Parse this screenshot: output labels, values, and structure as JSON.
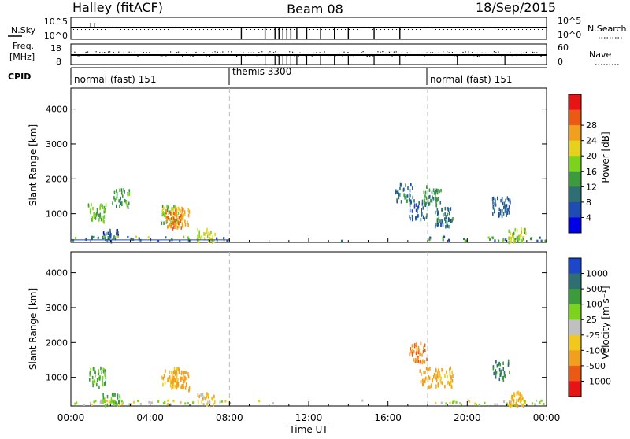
{
  "header": {
    "station": "Halley (fitACF)",
    "beam": "Beam 08",
    "date": "18/Sep/2015"
  },
  "noise_panel": {
    "left_label": "N.Sky",
    "left_ticks": [
      "10^5",
      "10^0"
    ],
    "right_label": "N.Search",
    "right_ticks": [
      "10^5",
      "10^0"
    ]
  },
  "freq_panel": {
    "left_label_1": "Freq.",
    "left_label_2": "[MHz]",
    "left_ticks": [
      "18",
      "8"
    ],
    "right_label": "Nave",
    "right_ticks": [
      "60",
      "0"
    ]
  },
  "cpid_panel": {
    "label": "CPID",
    "segments": [
      {
        "start_hour": 0,
        "end_hour": 8,
        "label": "normal (fast) 151"
      },
      {
        "start_hour": 8,
        "end_hour": 18,
        "label": "themis 3300"
      },
      {
        "start_hour": 18,
        "end_hour": 24,
        "label": "normal (fast) 151"
      }
    ]
  },
  "chart_data": [
    {
      "type": "heatmap",
      "name": "power",
      "ylabel": "Slant Range [km]",
      "y_ticks": [
        "1000",
        "2000",
        "3000",
        "4000"
      ],
      "ylim": [
        180,
        4600
      ],
      "xlim": [
        0,
        24
      ],
      "colorbar_label": "Power [dB]",
      "colorbar_ticks": [
        "4",
        "8",
        "12",
        "16",
        "20",
        "24",
        "28"
      ],
      "colorbar_colors": [
        "#0000e6",
        "#1e4bb4",
        "#2f6e73",
        "#3c9b3c",
        "#7dd21e",
        "#e6d21e",
        "#f0a01e",
        "#eb5a14",
        "#e61414"
      ],
      "clusters": [
        {
          "hour": 1.3,
          "range_km": 1000,
          "value": 14
        },
        {
          "hour": 2.5,
          "range_km": 1450,
          "value": 12
        },
        {
          "hour": 5.0,
          "range_km": 1000,
          "value": 16
        },
        {
          "hour": 5.5,
          "range_km": 900,
          "value": 22
        },
        {
          "hour": 5.2,
          "range_km": 850,
          "value": 26
        },
        {
          "hour": 16.8,
          "range_km": 1600,
          "value": 8
        },
        {
          "hour": 17.5,
          "range_km": 1100,
          "value": 6
        },
        {
          "hour": 18.2,
          "range_km": 1500,
          "value": 10
        },
        {
          "hour": 18.8,
          "range_km": 900,
          "value": 8
        },
        {
          "hour": 21.7,
          "range_km": 1200,
          "value": 6
        },
        {
          "hour": 22.5,
          "range_km": 300,
          "value": 16
        },
        {
          "hour": 2.0,
          "range_km": 250,
          "value": 4
        },
        {
          "hour": 6.8,
          "range_km": 280,
          "value": 18
        }
      ]
    },
    {
      "type": "heatmap",
      "name": "velocity",
      "ylabel": "Slant Range [km]",
      "y_ticks": [
        "1000",
        "2000",
        "3000",
        "4000"
      ],
      "ylim": [
        180,
        4600
      ],
      "xlim": [
        0,
        24
      ],
      "colorbar_label": "Velocity [m s⁻¹]",
      "colorbar_ticks": [
        "1000",
        "500",
        "100",
        "25",
        "-25",
        "-100",
        "-500",
        "-1000"
      ],
      "colorbar_colors": [
        "#1e46c8",
        "#2f6e73",
        "#3c9b3c",
        "#7dd21e",
        "#c0c0c0",
        "#f0c81e",
        "#f0a01e",
        "#eb5a14",
        "#e61414"
      ],
      "clusters": [
        {
          "hour": 1.3,
          "range_km": 1000,
          "value": 100
        },
        {
          "hour": 5.0,
          "range_km": 1000,
          "value": -100
        },
        {
          "hour": 5.5,
          "range_km": 900,
          "value": -300
        },
        {
          "hour": 17.5,
          "range_km": 1700,
          "value": -500
        },
        {
          "hour": 18.0,
          "range_km": 1000,
          "value": -300
        },
        {
          "hour": 18.8,
          "range_km": 1000,
          "value": -100
        },
        {
          "hour": 21.7,
          "range_km": 1200,
          "value": 500
        },
        {
          "hour": 22.5,
          "range_km": 300,
          "value": -100
        },
        {
          "hour": 2.0,
          "range_km": 250,
          "value": 100
        },
        {
          "hour": 6.8,
          "range_km": 280,
          "value": -50
        }
      ]
    }
  ],
  "x_axis": {
    "tick_labels": [
      "00:00",
      "04:00",
      "08:00",
      "12:00",
      "16:00",
      "20:00",
      "00:00"
    ],
    "label": "Time UT",
    "mode_change_hours": [
      8,
      18
    ]
  }
}
